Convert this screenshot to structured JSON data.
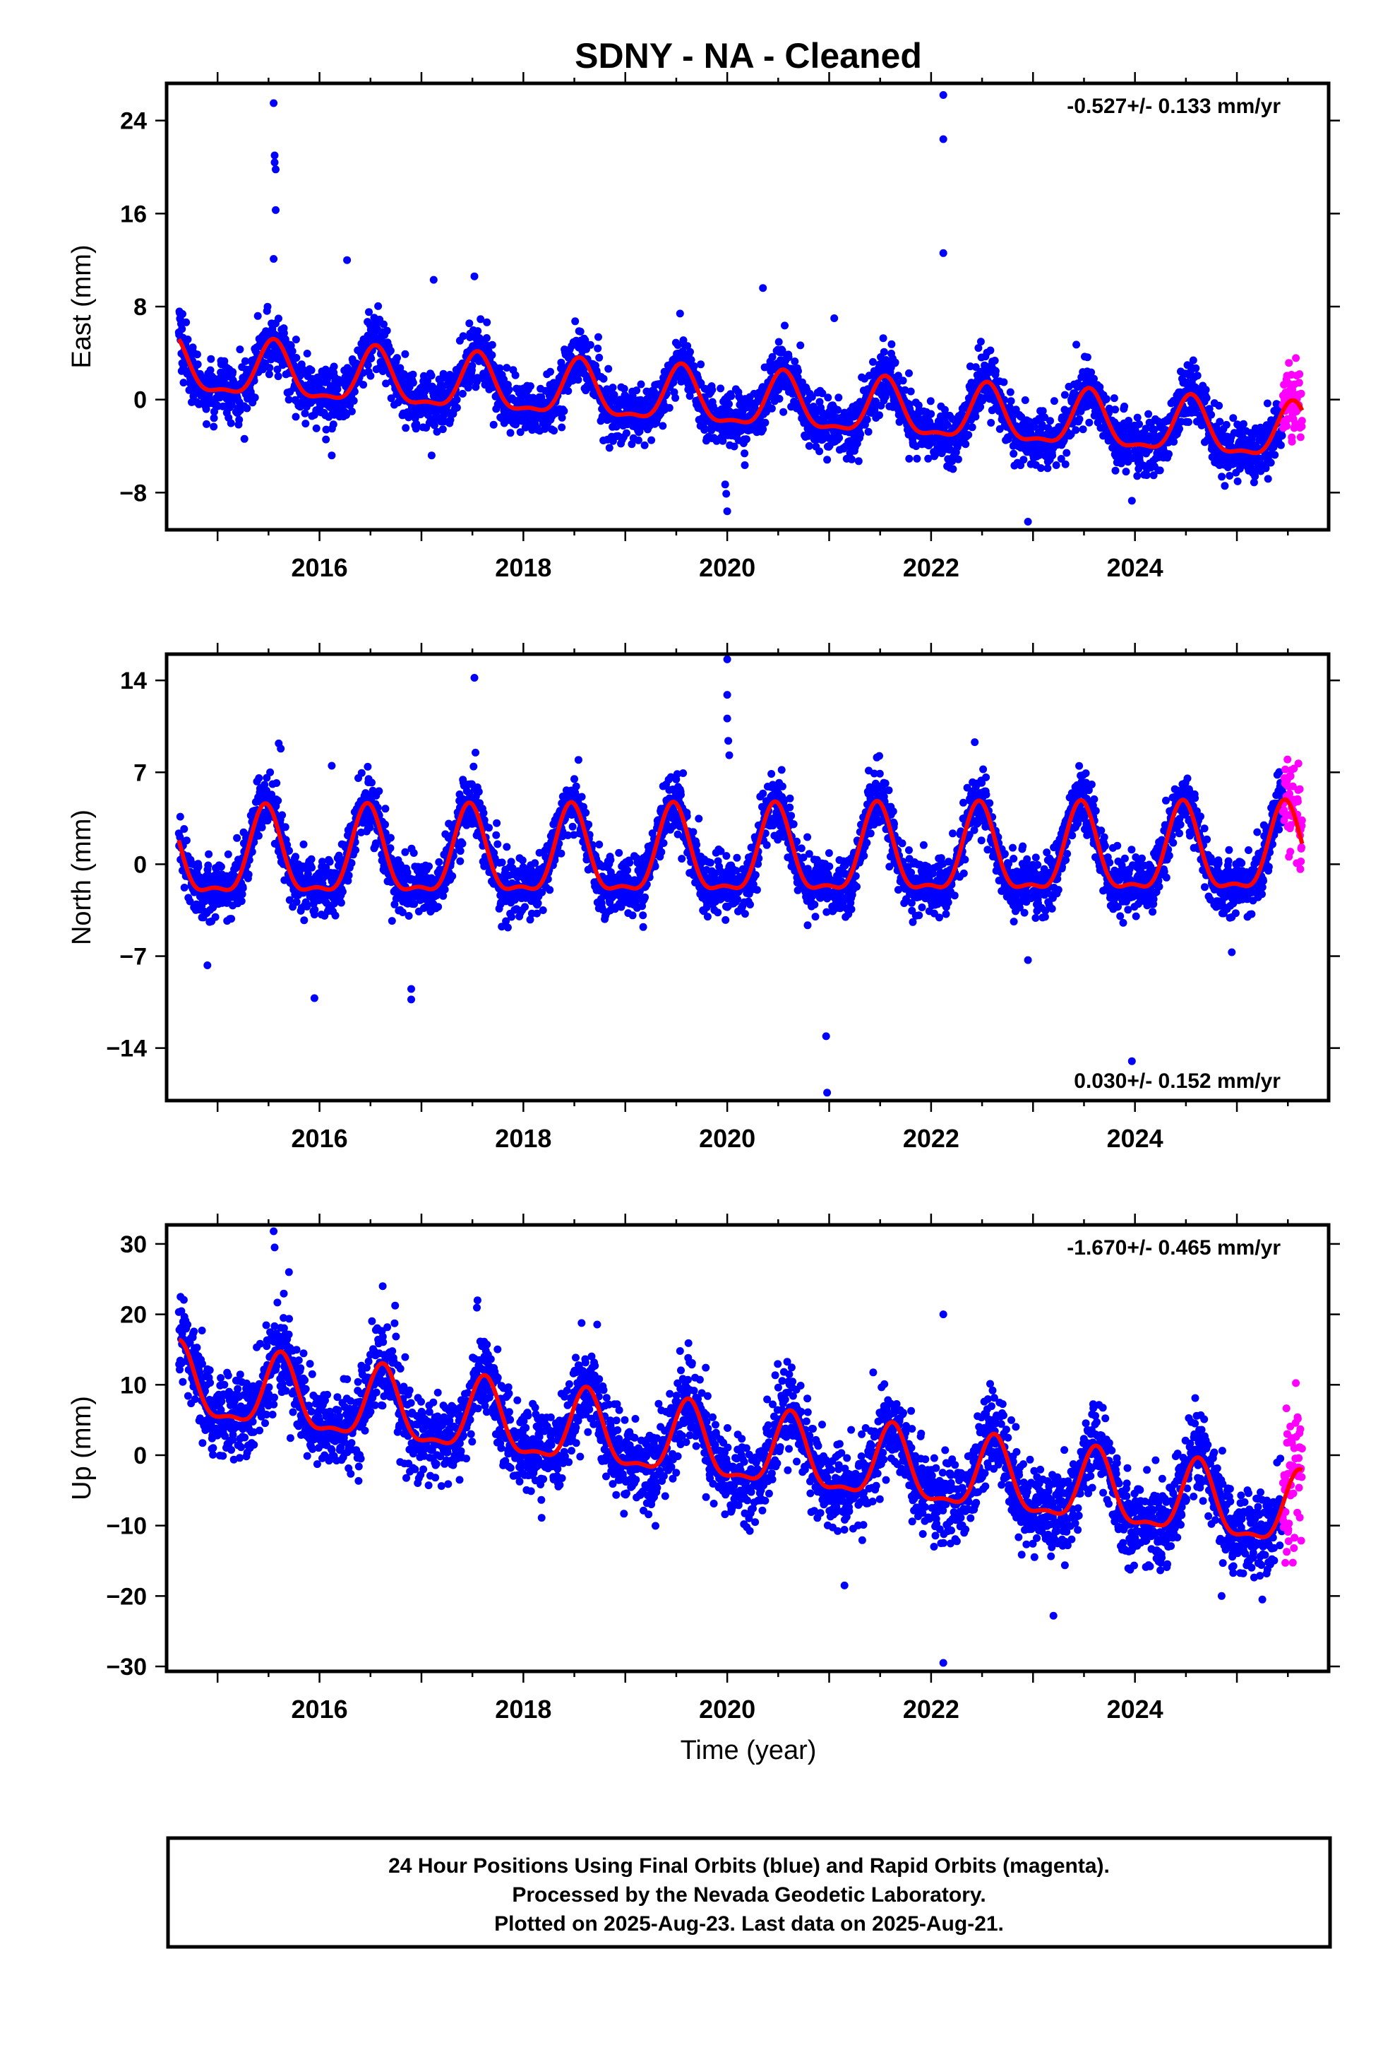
{
  "title": "SDNY  - NA - Cleaned",
  "xlabel": "Time (year)",
  "x_tick_labels": [
    "2016",
    "2018",
    "2020",
    "2022",
    "2024"
  ],
  "colors": {
    "final_orbits": "#0000ff",
    "rapid_orbits": "#ff00ff",
    "model": "#ff0000"
  },
  "footer": {
    "line1": "24 Hour Positions Using Final Orbits (blue) and Rapid Orbits (magenta).",
    "line2": "Processed by the Nevada Geodetic Laboratory.",
    "line3": "Plotted on 2025-Aug-23. Last data on 2025-Aug-21."
  },
  "chart_data": [
    {
      "type": "scatter",
      "component": "East",
      "ylabel": "East (mm)",
      "rate_label": "-0.527+/- 0.133 mm/yr",
      "xlim": [
        2014.5,
        2025.9
      ],
      "ylim": [
        -11.2,
        27.2
      ],
      "yticks": [
        -8,
        0,
        8,
        16,
        24
      ],
      "ytick_labels": [
        "−8",
        "0",
        "8",
        "16",
        "24"
      ],
      "start_year": 2014.62,
      "end_year": 2025.64,
      "rapid_start_year": 2025.45,
      "trend": {
        "value_at_2015": 2.4,
        "rate_mm_per_yr": -0.527
      },
      "seasonal": {
        "amplitude": 2.3,
        "peak_year_fraction": 0.55
      },
      "scatter_sd": 1.2,
      "outliers": [
        {
          "x": 2015.55,
          "y": 25.5
        },
        {
          "x": 2015.56,
          "y": 21.0
        },
        {
          "x": 2015.56,
          "y": 20.4
        },
        {
          "x": 2015.57,
          "y": 19.8
        },
        {
          "x": 2015.57,
          "y": 16.3
        },
        {
          "x": 2015.55,
          "y": 12.1
        },
        {
          "x": 2016.27,
          "y": 12.0
        },
        {
          "x": 2017.12,
          "y": 10.3
        },
        {
          "x": 2017.52,
          "y": 10.6
        },
        {
          "x": 2020.35,
          "y": 9.6
        },
        {
          "x": 2021.05,
          "y": 7.0
        },
        {
          "x": 2022.12,
          "y": 26.2
        },
        {
          "x": 2022.12,
          "y": 22.4
        },
        {
          "x": 2022.12,
          "y": 12.6
        },
        {
          "x": 2022.95,
          "y": -10.5
        },
        {
          "x": 2019.98,
          "y": -7.3
        },
        {
          "x": 2019.99,
          "y": -8.1
        },
        {
          "x": 2020.0,
          "y": -9.6
        },
        {
          "x": 2023.97,
          "y": -8.7
        },
        {
          "x": 2017.1,
          "y": -4.8
        },
        {
          "x": 2016.12,
          "y": -4.8
        }
      ]
    },
    {
      "type": "scatter",
      "component": "North",
      "ylabel": "North (mm)",
      "rate_label": "0.030+/- 0.152 mm/yr",
      "xlim": [
        2014.5,
        2025.9
      ],
      "ylim": [
        -18,
        16
      ],
      "yticks": [
        -14,
        -7,
        0,
        7,
        14
      ],
      "ytick_labels": [
        "−14",
        "−7",
        "0",
        "7",
        "14"
      ],
      "start_year": 2014.62,
      "end_year": 2025.64,
      "rapid_start_year": 2025.45,
      "trend": {
        "value_at_2015": 0.3,
        "rate_mm_per_yr": 0.03
      },
      "seasonal": {
        "amplitude": 3.2,
        "peak_year_fraction": 0.47
      },
      "scatter_sd": 1.1,
      "outliers": [
        {
          "x": 2015.6,
          "y": 9.2
        },
        {
          "x": 2015.62,
          "y": 8.8
        },
        {
          "x": 2017.52,
          "y": 14.2
        },
        {
          "x": 2017.53,
          "y": 8.5
        },
        {
          "x": 2020.0,
          "y": 15.6
        },
        {
          "x": 2020.0,
          "y": 12.9
        },
        {
          "x": 2020.0,
          "y": 11.1
        },
        {
          "x": 2020.01,
          "y": 9.4
        },
        {
          "x": 2020.02,
          "y": 8.3
        },
        {
          "x": 2020.97,
          "y": -13.1
        },
        {
          "x": 2020.98,
          "y": -17.4
        },
        {
          "x": 2023.97,
          "y": -15.0
        },
        {
          "x": 2015.95,
          "y": -10.2
        },
        {
          "x": 2016.9,
          "y": -9.5
        },
        {
          "x": 2016.9,
          "y": -10.3
        },
        {
          "x": 2014.9,
          "y": -7.7
        },
        {
          "x": 2024.95,
          "y": -6.7
        },
        {
          "x": 2016.12,
          "y": 7.5
        },
        {
          "x": 2022.95,
          "y": -7.3
        }
      ]
    },
    {
      "type": "scatter",
      "component": "Up",
      "ylabel": "Up (mm)",
      "rate_label": "-1.670+/- 0.465 mm/yr",
      "xlim": [
        2014.5,
        2025.9
      ],
      "ylim": [
        -30.7,
        32.7
      ],
      "yticks": [
        -30,
        -20,
        -10,
        0,
        10,
        20,
        30
      ],
      "ytick_labels": [
        "−30",
        "−20",
        "−10",
        "0",
        "10",
        "20",
        "30"
      ],
      "start_year": 2014.62,
      "end_year": 2025.64,
      "rapid_start_year": 2025.45,
      "trend": {
        "value_at_2015": 9.0,
        "rate_mm_per_yr": -1.67
      },
      "seasonal": {
        "amplitude": 5.0,
        "peak_year_fraction": 0.62
      },
      "scatter_sd": 3.0,
      "outliers": [
        {
          "x": 2015.55,
          "y": 31.8
        },
        {
          "x": 2015.56,
          "y": 29.5
        },
        {
          "x": 2015.7,
          "y": 26.0
        },
        {
          "x": 2016.62,
          "y": 24.0
        },
        {
          "x": 2017.55,
          "y": 22.0
        },
        {
          "x": 2022.12,
          "y": 20.0
        },
        {
          "x": 2022.12,
          "y": -29.5
        },
        {
          "x": 2023.2,
          "y": -22.8
        },
        {
          "x": 2021.15,
          "y": -18.5
        },
        {
          "x": 2024.85,
          "y": -20.0
        },
        {
          "x": 2025.25,
          "y": -20.5
        }
      ]
    }
  ]
}
